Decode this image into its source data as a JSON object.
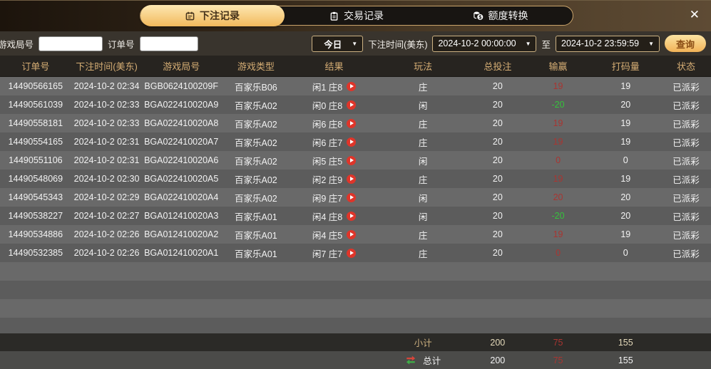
{
  "tabs": [
    {
      "label": "下注记录",
      "icon": "calendar-icon",
      "active": true
    },
    {
      "label": "交易记录",
      "icon": "clipboard-icon",
      "active": false
    },
    {
      "label": "额度转换",
      "icon": "coins-icon",
      "active": false
    }
  ],
  "close_label": "✕",
  "filters": {
    "game_round_label": "游戏局号",
    "order_no_label": "订单号",
    "range_selected": "今日",
    "bet_time_label": "下注时间(美东)",
    "date_from": "2024-10-2 00:00:00",
    "to_label": "至",
    "date_to": "2024-10-2 23:59:59",
    "query_label": "查询",
    "caret": "▼"
  },
  "table": {
    "headers": [
      "订单号",
      "下注时间(美东)",
      "游戏局号",
      "游戏类型",
      "结果",
      "玩法",
      "总投注",
      "输赢",
      "打码量",
      "状态"
    ],
    "rows": [
      {
        "order": "14490566165",
        "time": "2024-10-2 02:34",
        "round": "BGB0624100209F",
        "game": "百家乐B06",
        "result": "闲1 庄8",
        "play": "庄",
        "bet": "20",
        "winloss": "19",
        "wl_color": "red",
        "turnover": "19",
        "status": "已派彩"
      },
      {
        "order": "14490561039",
        "time": "2024-10-2 02:33",
        "round": "BGA022410020A9",
        "game": "百家乐A02",
        "result": "闲0 庄8",
        "play": "闲",
        "bet": "20",
        "winloss": "-20",
        "wl_color": "green",
        "turnover": "20",
        "status": "已派彩"
      },
      {
        "order": "14490558181",
        "time": "2024-10-2 02:33",
        "round": "BGA022410020A8",
        "game": "百家乐A02",
        "result": "闲6 庄8",
        "play": "庄",
        "bet": "20",
        "winloss": "19",
        "wl_color": "red",
        "turnover": "19",
        "status": "已派彩"
      },
      {
        "order": "14490554165",
        "time": "2024-10-2 02:31",
        "round": "BGA022410020A7",
        "game": "百家乐A02",
        "result": "闲6 庄7",
        "play": "庄",
        "bet": "20",
        "winloss": "19",
        "wl_color": "red",
        "turnover": "19",
        "status": "已派彩"
      },
      {
        "order": "14490551106",
        "time": "2024-10-2 02:31",
        "round": "BGA022410020A6",
        "game": "百家乐A02",
        "result": "闲5 庄5",
        "play": "闲",
        "bet": "20",
        "winloss": "0",
        "wl_color": "red",
        "turnover": "0",
        "status": "已派彩"
      },
      {
        "order": "14490548069",
        "time": "2024-10-2 02:30",
        "round": "BGA022410020A5",
        "game": "百家乐A02",
        "result": "闲2 庄9",
        "play": "庄",
        "bet": "20",
        "winloss": "19",
        "wl_color": "red",
        "turnover": "19",
        "status": "已派彩"
      },
      {
        "order": "14490545343",
        "time": "2024-10-2 02:29",
        "round": "BGA022410020A4",
        "game": "百家乐A02",
        "result": "闲9 庄7",
        "play": "闲",
        "bet": "20",
        "winloss": "20",
        "wl_color": "red",
        "turnover": "20",
        "status": "已派彩"
      },
      {
        "order": "14490538227",
        "time": "2024-10-2 02:27",
        "round": "BGA012410020A3",
        "game": "百家乐A01",
        "result": "闲4 庄8",
        "play": "闲",
        "bet": "20",
        "winloss": "-20",
        "wl_color": "green",
        "turnover": "20",
        "status": "已派彩"
      },
      {
        "order": "14490534886",
        "time": "2024-10-2 02:26",
        "round": "BGA012410020A2",
        "game": "百家乐A01",
        "result": "闲4 庄5",
        "play": "庄",
        "bet": "20",
        "winloss": "19",
        "wl_color": "red",
        "turnover": "19",
        "status": "已派彩"
      },
      {
        "order": "14490532385",
        "time": "2024-10-2 02:26",
        "round": "BGA012410020A1",
        "game": "百家乐A01",
        "result": "闲7 庄7",
        "play": "庄",
        "bet": "20",
        "winloss": "0",
        "wl_color": "red",
        "turnover": "0",
        "status": "已派彩"
      }
    ],
    "subtotal": {
      "label": "小计",
      "bet": "200",
      "winloss": "75",
      "turnover": "155"
    },
    "total": {
      "label": "总计",
      "bet": "200",
      "winloss": "75",
      "turnover": "155"
    }
  },
  "colors": {
    "accent_gold": "#f2b95c",
    "header_text": "#d5ad74",
    "win_red": "#a93531",
    "loss_green": "#35c33c",
    "play_button_red": "#df352a"
  }
}
